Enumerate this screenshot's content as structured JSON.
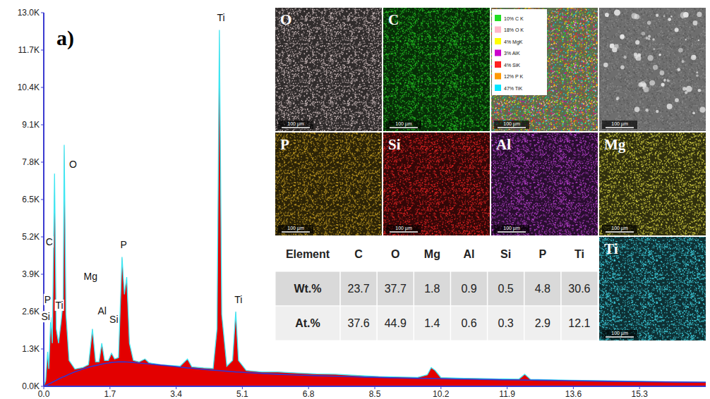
{
  "chart_data": {
    "type": "area",
    "panel_label": "a)",
    "x": [
      0,
      0.05,
      0.1,
      0.13,
      0.18,
      0.22,
      0.277,
      0.32,
      0.38,
      0.45,
      0.5,
      0.525,
      0.57,
      0.65,
      0.8,
      1.0,
      1.15,
      1.25,
      1.33,
      1.42,
      1.49,
      1.56,
      1.66,
      1.74,
      1.82,
      1.92,
      2.01,
      2.07,
      2.13,
      2.2,
      2.3,
      2.45,
      2.6,
      2.7,
      3.0,
      3.3,
      3.5,
      3.69,
      3.8,
      4.1,
      4.35,
      4.45,
      4.51,
      4.57,
      4.7,
      4.85,
      4.93,
      5.0,
      5.2,
      5.6,
      6.0,
      6.4,
      7.0,
      7.5,
      8.0,
      8.6,
      9.2,
      9.6,
      9.85,
      9.95,
      10.05,
      10.2,
      10.8,
      11.2,
      11.5,
      11.7,
      11.8,
      12.2,
      12.35,
      12.5,
      13.5,
      14.5,
      15.5,
      16.5,
      17
    ],
    "series": [
      {
        "type": "area",
        "color": "#e30000",
        "values": [
          0,
          200,
          1200,
          600,
          2400,
          1500,
          7400,
          2000,
          1500,
          2300,
          3000,
          8400,
          2500,
          900,
          600,
          650,
          750,
          2000,
          850,
          850,
          1500,
          900,
          900,
          1150,
          950,
          1000,
          4500,
          3200,
          3800,
          1500,
          900,
          850,
          950,
          820,
          750,
          720,
          700,
          950,
          680,
          640,
          620,
          2000,
          12400,
          2500,
          700,
          900,
          2600,
          900,
          550,
          500,
          500,
          470,
          430,
          420,
          380,
          340,
          320,
          310,
          400,
          650,
          550,
          300,
          280,
          270,
          260,
          255,
          260,
          250,
          420,
          240,
          210,
          190,
          170,
          150,
          145
        ]
      },
      {
        "type": "line",
        "color": "#3535d0",
        "values": [
          0,
          30,
          60,
          80,
          110,
          140,
          180,
          210,
          250,
          300,
          330,
          340,
          370,
          420,
          500,
          600,
          660,
          700,
          720,
          750,
          770,
          790,
          810,
          830,
          840,
          850,
          850,
          850,
          845,
          840,
          830,
          810,
          790,
          780,
          740,
          700,
          670,
          640,
          630,
          590,
          560,
          550,
          545,
          540,
          525,
          510,
          500,
          495,
          480,
          450,
          420,
          400,
          370,
          350,
          330,
          310,
          290,
          280,
          275,
          272,
          270,
          265,
          250,
          240,
          235,
          230,
          228,
          220,
          218,
          215,
          195,
          175,
          160,
          145,
          140
        ]
      }
    ],
    "xlim": [
      0,
      17
    ],
    "xticks": [
      {
        "value": 0,
        "label": "0.0"
      },
      1.7,
      3.4,
      5.1,
      6.8,
      8.5,
      10.2,
      11.9,
      13.6,
      15.3
    ],
    "ylim": [
      0,
      13000
    ],
    "yticks": [
      {
        "value": 0,
        "label": "0.0K"
      },
      {
        "value": 1300,
        "label": "1.3K"
      },
      {
        "value": 2600,
        "label": "2.6K"
      },
      {
        "value": 3900,
        "label": "3.9K"
      },
      {
        "value": 5200,
        "label": "5.2K"
      },
      {
        "value": 6500,
        "label": "6.5K"
      },
      {
        "value": 7800,
        "label": "7.8K"
      },
      {
        "value": 9100,
        "label": "9.1K"
      },
      {
        "value": 10400,
        "label": "10.4K"
      },
      {
        "value": 11700,
        "label": "11.7K"
      },
      {
        "value": 13000,
        "label": "13.0K"
      }
    ],
    "grid": false,
    "annotations": [
      {
        "text": "Ti",
        "x": 4.55,
        "y": 12700
      },
      {
        "text": "Ti",
        "x": 5.0,
        "y": 2900
      },
      {
        "text": "O",
        "x": 0.75,
        "y": 7600
      },
      {
        "text": "C",
        "x": 0.14,
        "y": 4900
      },
      {
        "text": "Mg",
        "x": 1.2,
        "y": 3700
      },
      {
        "text": "Al",
        "x": 1.5,
        "y": 2500
      },
      {
        "text": "Si",
        "x": 1.8,
        "y": 2200
      },
      {
        "text": "P",
        "x": 2.05,
        "y": 4800
      },
      {
        "text": "P",
        "x": 0.1,
        "y": 2900
      },
      {
        "text": "Si",
        "x": 0.05,
        "y": 2300
      },
      {
        "text": "Ti",
        "x": 0.4,
        "y": 2700
      }
    ]
  },
  "maps": [
    {
      "label": "O",
      "color": "#dccaca"
    },
    {
      "label": "C",
      "color": "#22cc22"
    },
    {
      "label": "P",
      "color": "#c8a020"
    },
    {
      "label": "Si",
      "color": "#e82020"
    },
    {
      "label": "Al",
      "color": "#c040d8"
    },
    {
      "label": "Mg",
      "color": "#d8d440"
    },
    {
      "label": "Ti",
      "color": "#40dcec"
    }
  ],
  "overlay_legend": [
    {
      "label": "10% C K",
      "color": "#22dd22"
    },
    {
      "label": "18% O K",
      "color": "#ffb6c8"
    },
    {
      "label": "4% MgK",
      "color": "#ffff00"
    },
    {
      "label": "3% AlK",
      "color": "#cc00cc"
    },
    {
      "label": "4% SiK",
      "color": "#ff2020"
    },
    {
      "label": "12% P K",
      "color": "#ff9900"
    },
    {
      "label": "47% TiK",
      "color": "#00e5ff"
    }
  ],
  "scale_bar": "100 µm",
  "table": {
    "header": [
      "Element",
      "C",
      "O",
      "Mg",
      "Al",
      "Si",
      "P",
      "Ti"
    ],
    "rows": [
      [
        "Wt.%",
        23.7,
        37.7,
        1.8,
        0.9,
        0.5,
        4.8,
        30.6
      ],
      [
        "At.%",
        37.6,
        44.9,
        1.4,
        0.6,
        0.3,
        2.9,
        12.1
      ]
    ]
  }
}
